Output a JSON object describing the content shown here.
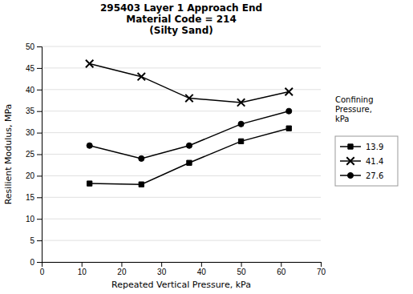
{
  "chart_data": {
    "type": "line",
    "title": "295403 Layer 1 Approach End\nMaterial Code = 214\n(Silty Sand)",
    "x_label": "Repeated Vertical Pressure, kPa",
    "y_label": "Resilient Modulus, MPa",
    "legend_title": "Confining\nPressure,\nkPa",
    "x": [
      12,
      25,
      37,
      50,
      62
    ],
    "series": [
      {
        "name": "13.9",
        "color": "#000000",
        "marker": "square",
        "line_style": "solid",
        "values": [
          18.2,
          18.0,
          23.0,
          28.0,
          31.0
        ]
      },
      {
        "name": "41.4",
        "color": "#000000",
        "marker": "x",
        "line_style": "solid",
        "values": [
          46.0,
          43.0,
          38.0,
          37.0,
          39.5
        ]
      },
      {
        "name": "27.6",
        "color": "#000000",
        "marker": "circle",
        "line_style": "solid",
        "values": [
          27.0,
          24.0,
          27.0,
          32.0,
          35.0
        ]
      }
    ],
    "xlim": [
      0,
      70
    ],
    "ylim": [
      0,
      50
    ],
    "xticks": [
      0,
      10,
      20,
      30,
      40,
      50,
      60,
      70
    ],
    "yticks": [
      0,
      5,
      10,
      15,
      20,
      25,
      30,
      35,
      40,
      45,
      50
    ],
    "grid": "y",
    "legend": "right"
  }
}
